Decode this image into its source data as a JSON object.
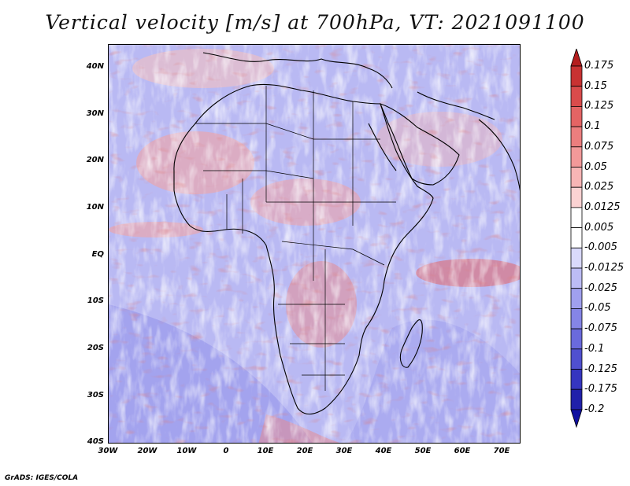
{
  "title": "Vertical velocity [m/s] at 700hPa, VT: 2021091100",
  "credit": "GrADS: IGES/COLA",
  "map": {
    "region": "Africa and surrounding oceans",
    "lon_range": [
      -30,
      76
    ],
    "lat_range": [
      -40,
      45
    ],
    "lat_ticks": [
      "40N",
      "30N",
      "20N",
      "10N",
      "EQ",
      "10S",
      "20S",
      "30S",
      "40S"
    ],
    "lon_ticks": [
      "30W",
      "20W",
      "10W",
      "0",
      "10E",
      "20E",
      "30E",
      "40E",
      "50E",
      "60E",
      "70E"
    ]
  },
  "colorbar": {
    "levels": [
      "0.175",
      "0.15",
      "0.125",
      "0.1",
      "0.075",
      "0.05",
      "0.025",
      "0.0125",
      "0.005",
      "-0.005",
      "-0.0125",
      "-0.025",
      "-0.05",
      "-0.075",
      "-0.1",
      "-0.125",
      "-0.175",
      "-0.2"
    ],
    "colors": [
      "#b41e1e",
      "#c83232",
      "#d94b4b",
      "#e46464",
      "#ec7e7e",
      "#f29999",
      "#f7b5b5",
      "#fbd2d2",
      "#ffffff",
      "#ffffff",
      "#d9d9fb",
      "#bcbcf5",
      "#a0a0ee",
      "#8585e6",
      "#6a6adc",
      "#5050d0",
      "#3535c0",
      "#2020aa",
      "#1010a0"
    ]
  }
}
